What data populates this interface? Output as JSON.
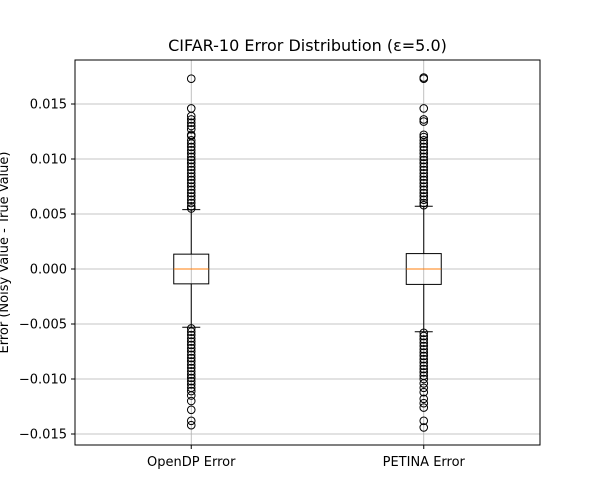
{
  "chart_data": {
    "type": "boxplot",
    "title": "CIFAR-10 Error Distribution (ε=5.0)",
    "ylabel": "Error (Noisy Value - True Value)",
    "xlabel": "",
    "categories": [
      "OpenDP Error",
      "PETINA Error"
    ],
    "ylim": [
      -0.016,
      0.019
    ],
    "yticks": [
      -0.015,
      -0.01,
      -0.005,
      0.0,
      0.005,
      0.01,
      0.015
    ],
    "ytick_labels": [
      "−0.015",
      "−0.010",
      "−0.005",
      "0.000",
      "0.005",
      "0.010",
      "0.015"
    ],
    "grid": true,
    "series": [
      {
        "median": 0.0,
        "q1": -0.00135,
        "q3": 0.00135,
        "whisker_low": -0.0053,
        "whisker_high": 0.0054,
        "outliers": [
          0.0173,
          0.0146,
          0.0139,
          0.0136,
          0.0133,
          0.013,
          0.0127,
          0.0122,
          0.0121,
          0.0117,
          0.0114,
          0.0111,
          0.0108,
          0.0105,
          0.0102,
          0.0099,
          0.0096,
          0.0093,
          0.009,
          0.0087,
          0.0084,
          0.0081,
          0.0078,
          0.0075,
          0.0072,
          0.0069,
          0.0066,
          0.0063,
          0.006,
          0.0057,
          0.0055,
          -0.0054,
          -0.0057,
          -0.006,
          -0.0063,
          -0.0066,
          -0.0069,
          -0.0072,
          -0.0075,
          -0.0078,
          -0.0081,
          -0.0084,
          -0.0087,
          -0.009,
          -0.0093,
          -0.0096,
          -0.0099,
          -0.0102,
          -0.0105,
          -0.0108,
          -0.0111,
          -0.0115,
          -0.012,
          -0.0128,
          -0.0138,
          -0.0142
        ]
      },
      {
        "median": 0.0,
        "q1": -0.0014,
        "q3": 0.0014,
        "whisker_low": -0.0057,
        "whisker_high": 0.0057,
        "outliers": [
          0.0174,
          0.0173,
          0.0146,
          0.0136,
          0.0134,
          0.0122,
          0.012,
          0.0117,
          0.0114,
          0.0111,
          0.0108,
          0.0105,
          0.0102,
          0.0099,
          0.0096,
          0.0093,
          0.009,
          0.0087,
          0.0084,
          0.0081,
          0.0078,
          0.0075,
          0.0072,
          0.0069,
          0.0066,
          0.0063,
          0.006,
          0.0058,
          -0.0058,
          -0.0061,
          -0.0064,
          -0.0067,
          -0.007,
          -0.0073,
          -0.0076,
          -0.0079,
          -0.0082,
          -0.0085,
          -0.0088,
          -0.0091,
          -0.0094,
          -0.0097,
          -0.01,
          -0.0104,
          -0.0108,
          -0.0112,
          -0.0118,
          -0.0122,
          -0.0126,
          -0.0138,
          -0.0144
        ]
      }
    ],
    "colors": {
      "box": "#000000",
      "median": "#ff7f0e",
      "grid": "#b0b0b0",
      "frame": "#000000"
    }
  }
}
